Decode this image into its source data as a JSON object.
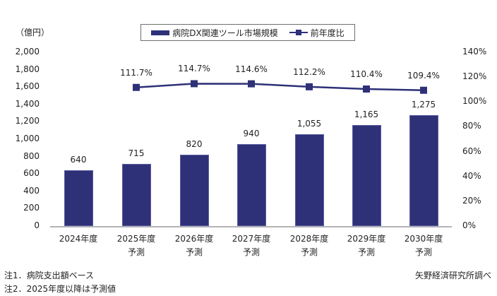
{
  "chart_data": {
    "type": "bar+line",
    "title": "",
    "unit_label": "（億円）",
    "xlabel": "",
    "ylabel": "億円",
    "ylim": [
      0,
      2000
    ],
    "y2lim": [
      0,
      140
    ],
    "y_ticks": [
      "2,000",
      "1,800",
      "1,600",
      "1,400",
      "1,200",
      "1,000",
      "800",
      "600",
      "400",
      "200",
      "0"
    ],
    "y2_ticks": [
      "140%",
      "120%",
      "100%",
      "80%",
      "60%",
      "40%",
      "20%",
      "0%"
    ],
    "categories": [
      {
        "year": "2024年度",
        "sub": ""
      },
      {
        "year": "2025年度",
        "sub": "予測"
      },
      {
        "year": "2026年度",
        "sub": "予測"
      },
      {
        "year": "2027年度",
        "sub": "予測"
      },
      {
        "year": "2028年度",
        "sub": "予測"
      },
      {
        "year": "2029年度",
        "sub": "予測"
      },
      {
        "year": "2030年度",
        "sub": "予測"
      }
    ],
    "series": [
      {
        "name": "病院DX関連ツール市場規模",
        "type": "bar",
        "axis": "left",
        "values": [
          640,
          715,
          820,
          940,
          1055,
          1165,
          1275
        ],
        "labels": [
          "640",
          "715",
          "820",
          "940",
          "1,055",
          "1,165",
          "1,275"
        ]
      },
      {
        "name": "前年度比",
        "type": "line",
        "axis": "right",
        "values": [
          null,
          111.7,
          114.7,
          114.6,
          112.2,
          110.4,
          109.4
        ],
        "labels": [
          "",
          "111.7%",
          "114.7%",
          "114.6%",
          "112.2%",
          "110.4%",
          "109.4%"
        ]
      }
    ],
    "legend": {
      "position": "top",
      "entries": [
        "病院DX関連ツール市場規模",
        "前年度比"
      ]
    },
    "grid": false,
    "colors": {
      "bar": "#2e3178",
      "line": "#2e3178",
      "axis": "#b4b4b8"
    }
  },
  "notes": [
    "注1．病院支出額ベース",
    "注2．2025年度以降は予測値"
  ],
  "source": "矢野経済研究所調べ"
}
